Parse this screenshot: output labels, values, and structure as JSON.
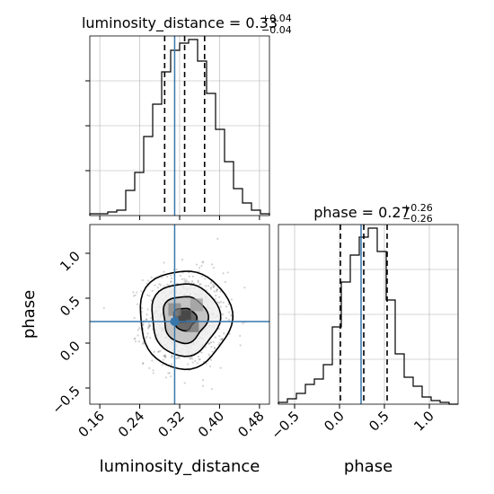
{
  "chart_data": [
    {
      "type": "histogram",
      "panel": "luminosity_distance marginal",
      "title": {
        "param": "luminosity_distance",
        "median": "0.33",
        "plus": "+0.04",
        "minus": "−0.04"
      },
      "xlim": [
        0.14,
        0.5
      ],
      "ylim": [
        0,
        1.0
      ],
      "bin_edges": [
        0.14,
        0.158,
        0.176,
        0.194,
        0.212,
        0.23,
        0.248,
        0.266,
        0.284,
        0.302,
        0.32,
        0.338,
        0.356,
        0.374,
        0.392,
        0.41,
        0.428,
        0.446,
        0.464,
        0.482,
        0.5
      ],
      "counts": [
        0.01,
        0.01,
        0.02,
        0.03,
        0.14,
        0.24,
        0.44,
        0.62,
        0.8,
        0.92,
        0.96,
        0.98,
        0.86,
        0.68,
        0.48,
        0.3,
        0.15,
        0.07,
        0.03,
        0.01
      ],
      "quantiles": [
        0.29,
        0.33,
        0.37
      ],
      "truth": 0.31,
      "grid": true
    },
    {
      "type": "histogram",
      "panel": "phase marginal",
      "title": {
        "param": "phase",
        "median": "0.27",
        "plus": "+0.26",
        "minus": "−0.26"
      },
      "xlim": [
        -0.68,
        1.32
      ],
      "ylim": [
        0,
        1.0
      ],
      "bin_edges": [
        -0.68,
        -0.58,
        -0.48,
        -0.38,
        -0.28,
        -0.18,
        -0.08,
        0.02,
        0.12,
        0.22,
        0.32,
        0.42,
        0.52,
        0.62,
        0.72,
        0.82,
        0.92,
        1.02,
        1.12,
        1.22,
        1.32
      ],
      "counts": [
        0.01,
        0.03,
        0.06,
        0.11,
        0.14,
        0.22,
        0.43,
        0.68,
        0.83,
        0.93,
        0.98,
        0.85,
        0.58,
        0.28,
        0.15,
        0.1,
        0.04,
        0.02,
        0.01,
        0.0
      ],
      "quantiles": [
        0.01,
        0.27,
        0.53
      ],
      "truth": 0.24,
      "grid": true
    },
    {
      "type": "scatter-contour",
      "panel": "2D posterior luminosity_distance vs phase",
      "xlabel": "luminosity_distance",
      "ylabel": "phase",
      "xlim": [
        0.14,
        0.5
      ],
      "ylim": [
        -0.68,
        1.32
      ],
      "x_ticks": [
        "0.16",
        "0.24",
        "0.32",
        "0.40",
        "0.48"
      ],
      "y_ticks": [
        "−0.5",
        "0.0",
        "0.5",
        "1.0"
      ],
      "center": [
        0.33,
        0.27
      ],
      "sigma": [
        0.04,
        0.26
      ],
      "contours": [
        {
          "rx_sigma": 0.55,
          "ry_sigma": 0.48,
          "wobble": 0.1,
          "fill": "#5a5a5a"
        },
        {
          "rx_sigma": 1.1,
          "ry_sigma": 1.0,
          "wobble": 0.07,
          "fill": "#bdbdbd"
        },
        {
          "rx_sigma": 1.7,
          "ry_sigma": 1.55,
          "wobble": 0.05,
          "fill": "#efefef"
        },
        {
          "rx_sigma": 2.3,
          "ry_sigma": 2.1,
          "wobble": 0.04,
          "fill": "none"
        }
      ],
      "truth": [
        0.31,
        0.24
      ],
      "truth_color": "#3776ab"
    },
    {
      "type": "axis",
      "panel": "phase marginal x-axis",
      "xlabel": "phase",
      "x_ticks": [
        "−0.5",
        "0.0",
        "0.5",
        "1.0"
      ]
    }
  ],
  "colors": {
    "truth": "#3776ab",
    "line": "#000000",
    "grid": "#b0b0b0"
  }
}
